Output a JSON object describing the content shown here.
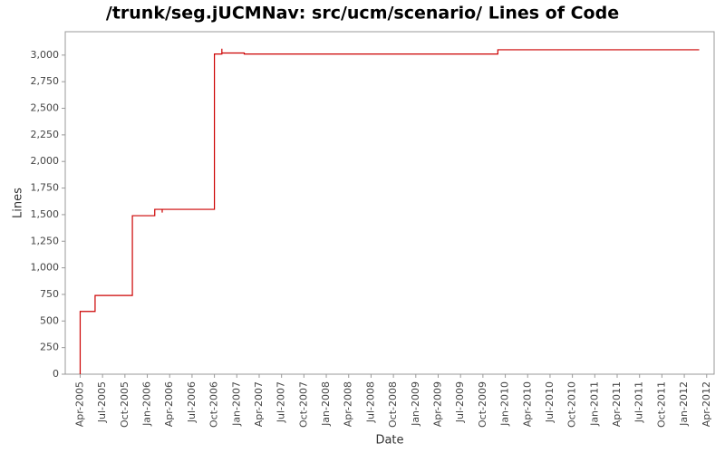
{
  "chart_data": {
    "type": "line",
    "step": true,
    "title": "/trunk/seg.jUCMNav: src/ucm/scenario/ Lines of Code",
    "xlabel": "Date",
    "ylabel": "Lines",
    "x": [
      "2005-04",
      "2005-04",
      "2005-06",
      "2005-11",
      "2006-02",
      "2006-03",
      "2006-03",
      "2006-10",
      "2006-10",
      "2006-10",
      "2006-11",
      "2006-11",
      "2007-02",
      "2009-12",
      "2012-03"
    ],
    "series": [
      {
        "name": "Lines",
        "color": "#cc0000",
        "values": [
          0,
          590,
          740,
          1490,
          1550,
          1520,
          1550,
          2510,
          2620,
          3010,
          3060,
          3020,
          3010,
          3050,
          3050
        ]
      }
    ],
    "xlim": [
      "2005-02",
      "2012-05"
    ],
    "xticks": [
      {
        "value": "2005-04",
        "label": "Apr-2005"
      },
      {
        "value": "2005-07",
        "label": "Jul-2005"
      },
      {
        "value": "2005-10",
        "label": "Oct-2005"
      },
      {
        "value": "2006-01",
        "label": "Jan-2006"
      },
      {
        "value": "2006-04",
        "label": "Apr-2006"
      },
      {
        "value": "2006-07",
        "label": "Jul-2006"
      },
      {
        "value": "2006-10",
        "label": "Oct-2006"
      },
      {
        "value": "2007-01",
        "label": "Jan-2007"
      },
      {
        "value": "2007-04",
        "label": "Apr-2007"
      },
      {
        "value": "2007-07",
        "label": "Jul-2007"
      },
      {
        "value": "2007-10",
        "label": "Oct-2007"
      },
      {
        "value": "2008-01",
        "label": "Jan-2008"
      },
      {
        "value": "2008-04",
        "label": "Apr-2008"
      },
      {
        "value": "2008-07",
        "label": "Jul-2008"
      },
      {
        "value": "2008-10",
        "label": "Oct-2008"
      },
      {
        "value": "2009-01",
        "label": "Jan-2009"
      },
      {
        "value": "2009-04",
        "label": "Apr-2009"
      },
      {
        "value": "2009-07",
        "label": "Jul-2009"
      },
      {
        "value": "2009-10",
        "label": "Oct-2009"
      },
      {
        "value": "2010-01",
        "label": "Jan-2010"
      },
      {
        "value": "2010-04",
        "label": "Apr-2010"
      },
      {
        "value": "2010-07",
        "label": "Jul-2010"
      },
      {
        "value": "2010-10",
        "label": "Oct-2010"
      },
      {
        "value": "2011-01",
        "label": "Jan-2011"
      },
      {
        "value": "2011-04",
        "label": "Apr-2011"
      },
      {
        "value": "2011-07",
        "label": "Jul-2011"
      },
      {
        "value": "2011-10",
        "label": "Oct-2011"
      },
      {
        "value": "2012-01",
        "label": "Jan-2012"
      },
      {
        "value": "2012-04",
        "label": "Apr-2012"
      }
    ],
    "ylim": [
      0,
      3220
    ],
    "yticks": [
      0,
      250,
      500,
      750,
      {
        "value": 1000,
        "label": "1,000"
      },
      {
        "value": 1250,
        "label": "1,250"
      },
      {
        "value": 1500,
        "label": "1,500"
      },
      {
        "value": 1750,
        "label": "1,750"
      },
      {
        "value": 2000,
        "label": "2,000"
      },
      {
        "value": 2250,
        "label": "2,250"
      },
      {
        "value": 2500,
        "label": "2,500"
      },
      {
        "value": 2750,
        "label": "2,750"
      },
      {
        "value": 3000,
        "label": "3,000"
      }
    ],
    "grid": false
  }
}
